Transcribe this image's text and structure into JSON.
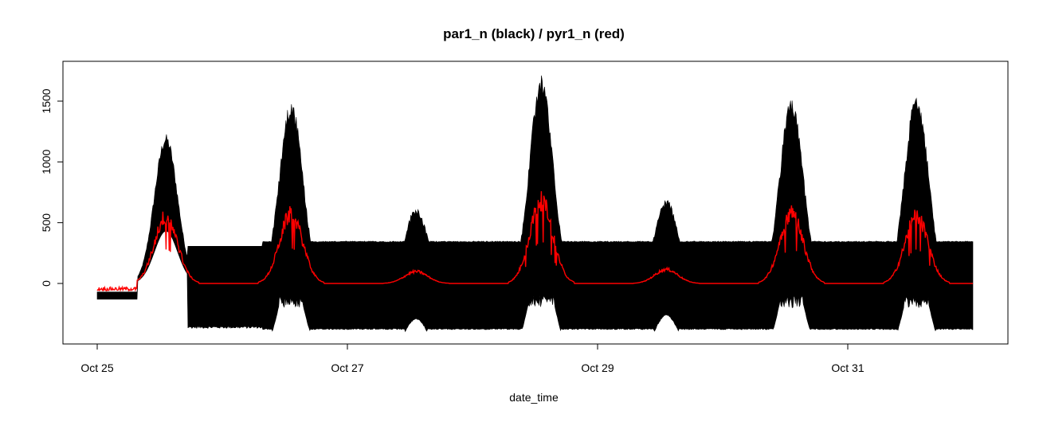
{
  "chart_data": {
    "type": "line",
    "title": "par1_n (black) / pyr1_n (red)",
    "xlabel": "date_time",
    "ylabel": "",
    "x_ticks": [
      "Oct 25",
      "Oct 27",
      "Oct 29",
      "Oct 31"
    ],
    "y_ticks": [
      0,
      500,
      1000,
      1500
    ],
    "xlim": [
      "Oct 25",
      "Nov 1"
    ],
    "ylim": [
      -400,
      1750
    ],
    "grid": false,
    "legend": "none",
    "series": [
      {
        "color": "#000000",
        "baseline_min": -370,
        "baseline_max": 340,
        "night_min": -130,
        "night_max": -70,
        "day_peaks": [
          {
            "day": "Oct 25",
            "peak": 1230
          },
          {
            "day": "Oct 26",
            "peak": 1520
          },
          {
            "day": "Oct 27",
            "peak": 630
          },
          {
            "day": "Oct 28",
            "peak": 1720
          },
          {
            "day": "Oct 29",
            "peak": 700
          },
          {
            "day": "Oct 30",
            "peak": 1540
          },
          {
            "day": "Oct 31",
            "peak": 1580
          }
        ]
      },
      {
        "color": "#ff0000",
        "baseline": -15,
        "night_min": -60,
        "night_max": -30,
        "day_peaks": [
          {
            "day": "Oct 25",
            "peak": 620
          },
          {
            "day": "Oct 26",
            "peak": 640
          },
          {
            "day": "Oct 27",
            "peak": 110
          },
          {
            "day": "Oct 28",
            "peak": 760
          },
          {
            "day": "Oct 29",
            "peak": 130
          },
          {
            "day": "Oct 30",
            "peak": 650
          },
          {
            "day": "Oct 31",
            "peak": 620
          }
        ]
      }
    ]
  }
}
